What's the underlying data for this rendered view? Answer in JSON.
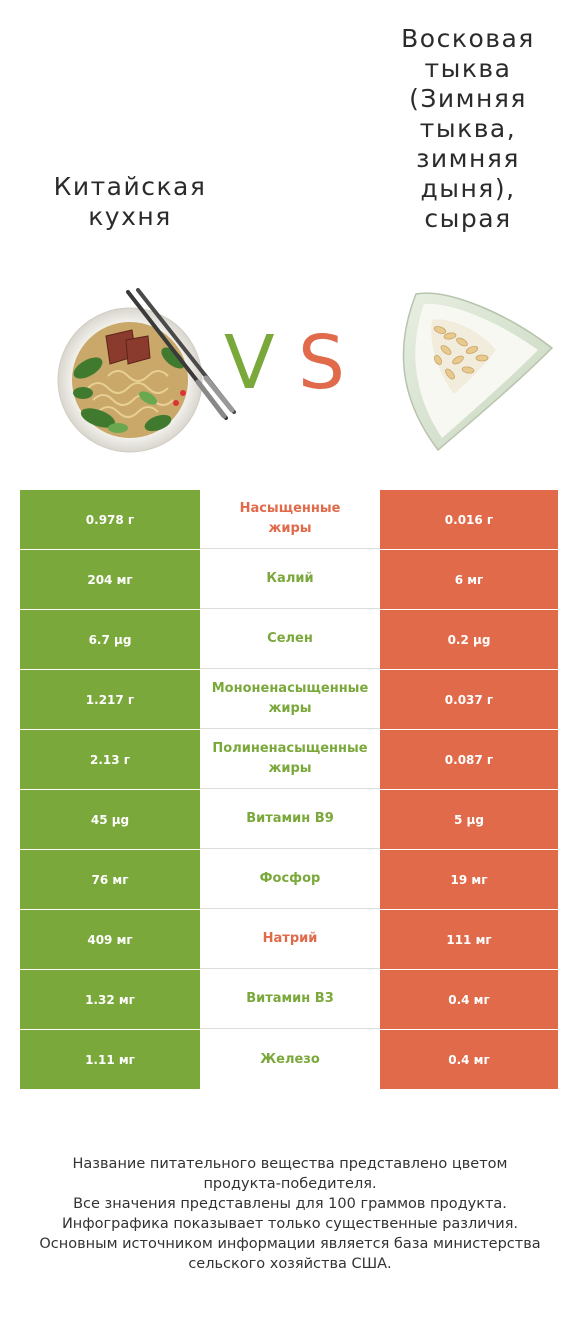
{
  "left_food": {
    "title": "Китайская\nкухня",
    "color": "#7aa83a"
  },
  "right_food": {
    "title": "Восковая\nтыква\n(Зимняя\nтыква,\nзимняя\nдыня),\nсырая",
    "color": "#e06a4a"
  },
  "vs": {
    "v": "V",
    "s": "S"
  },
  "rows": [
    {
      "left": "0.978 г",
      "nutrient": "Насыщенные\nжиры",
      "right": "0.016 г",
      "winner": "right"
    },
    {
      "left": "204 мг",
      "nutrient": "Калий",
      "right": "6 мг",
      "winner": "left"
    },
    {
      "left": "6.7 µg",
      "nutrient": "Селен",
      "right": "0.2 µg",
      "winner": "left"
    },
    {
      "left": "1.217 г",
      "nutrient": "Мононенасыщенные\nжиры",
      "right": "0.037 г",
      "winner": "left"
    },
    {
      "left": "2.13 г",
      "nutrient": "Полиненасыщенные\nжиры",
      "right": "0.087 г",
      "winner": "left"
    },
    {
      "left": "45 µg",
      "nutrient": "Витамин B9",
      "right": "5 µg",
      "winner": "left"
    },
    {
      "left": "76 мг",
      "nutrient": "Фосфор",
      "right": "19 мг",
      "winner": "left"
    },
    {
      "left": "409 мг",
      "nutrient": "Натрий",
      "right": "111 мг",
      "winner": "right"
    },
    {
      "left": "1.32 мг",
      "nutrient": "Витамин B3",
      "right": "0.4 мг",
      "winner": "left"
    },
    {
      "left": "1.11 мг",
      "nutrient": "Железо",
      "right": "0.4 мг",
      "winner": "left"
    }
  ],
  "footer": [
    "Название питательного вещества представлено цветом",
    "продукта-победителя.",
    "Все значения представлены для 100 граммов продукта.",
    "Инфографика показывает только существенные различия.",
    "Основным источником информации является база министерства",
    "сельского хозяйства США."
  ]
}
